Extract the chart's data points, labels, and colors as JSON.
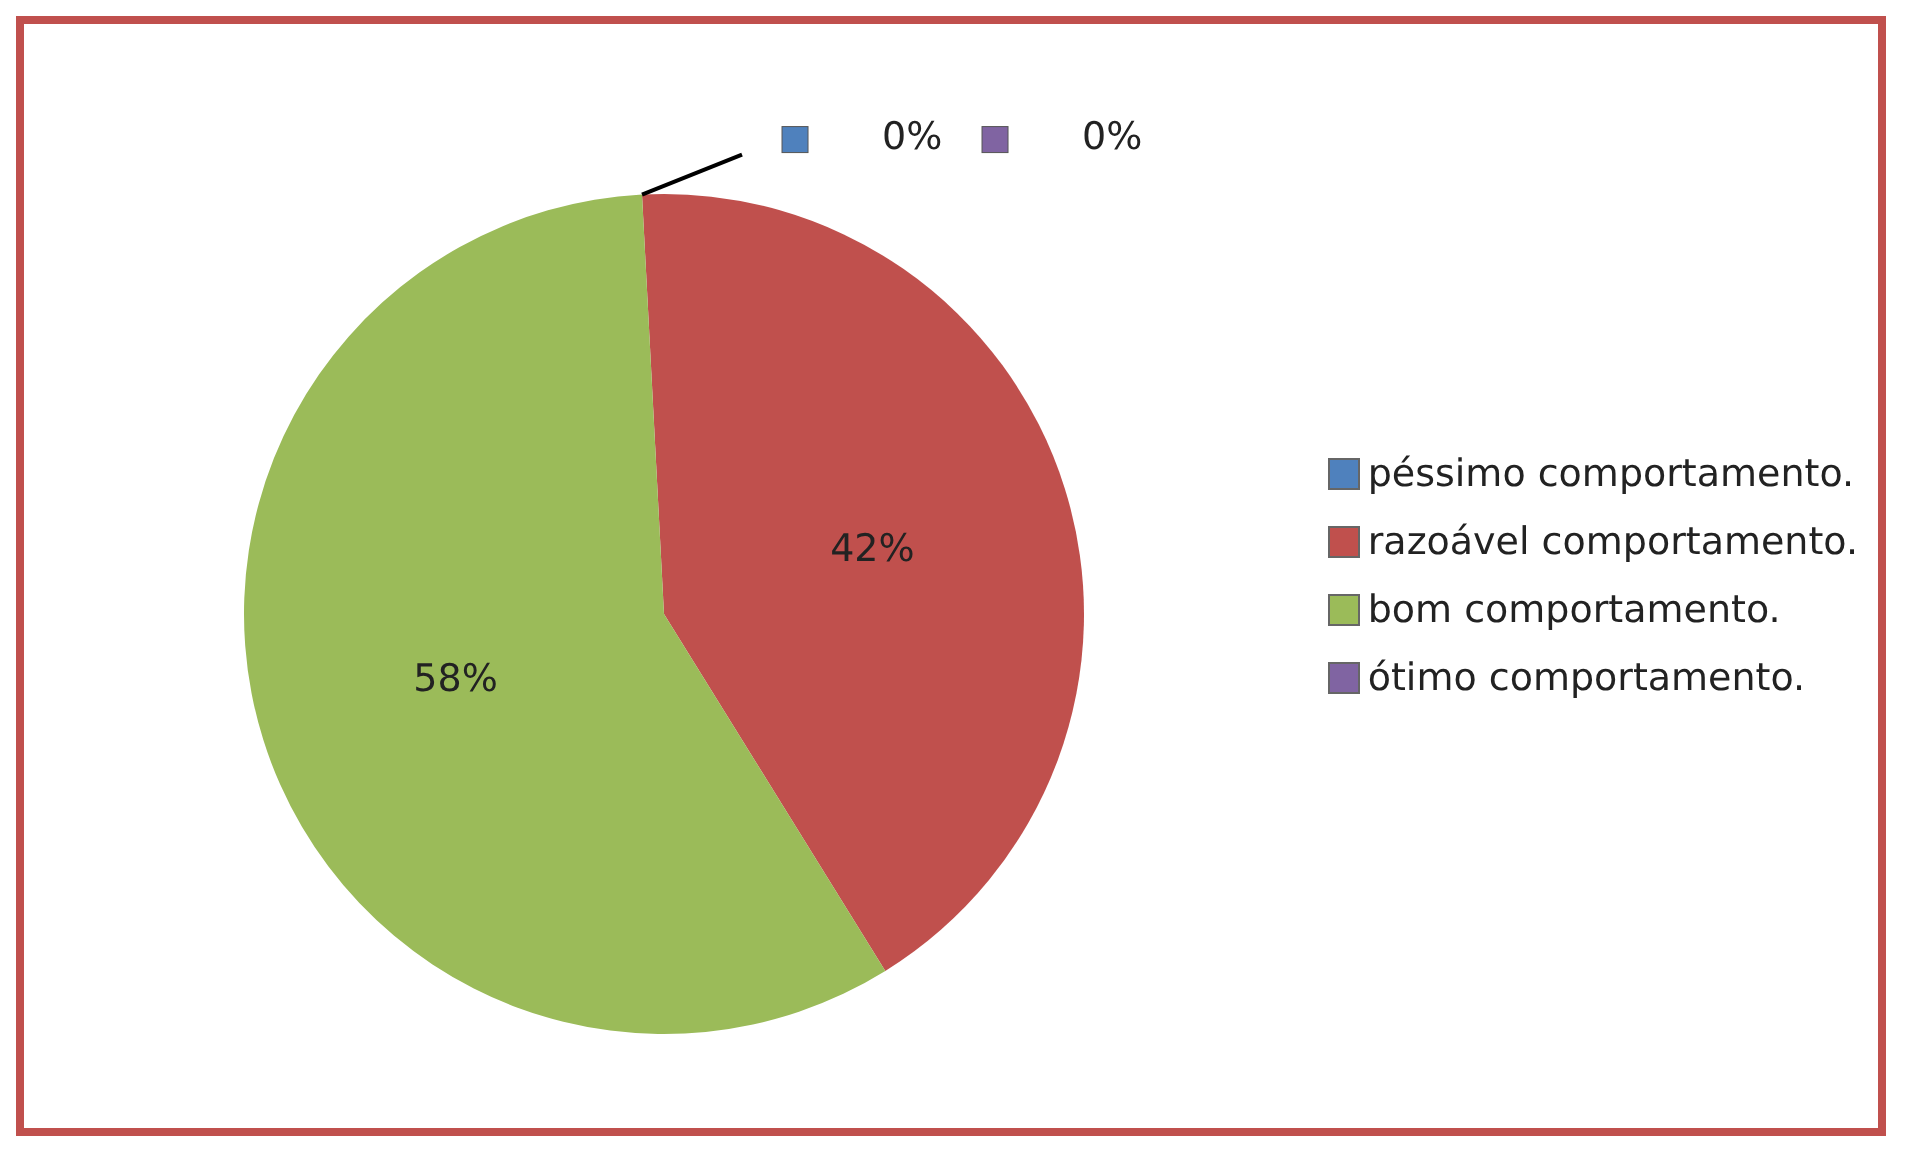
{
  "chart_data": {
    "type": "pie",
    "categories": [
      "péssimo comportamento.",
      "razoável comportamento.",
      "bom comportamento.",
      "ótimo comportamento."
    ],
    "values": [
      0,
      42,
      58,
      0
    ],
    "colors": [
      "#4f81bd",
      "#c0504d",
      "#9bbb59",
      "#8064a2"
    ],
    "value_labels": [
      "0%",
      "42%",
      "58%",
      "0%"
    ],
    "legend": "right"
  }
}
